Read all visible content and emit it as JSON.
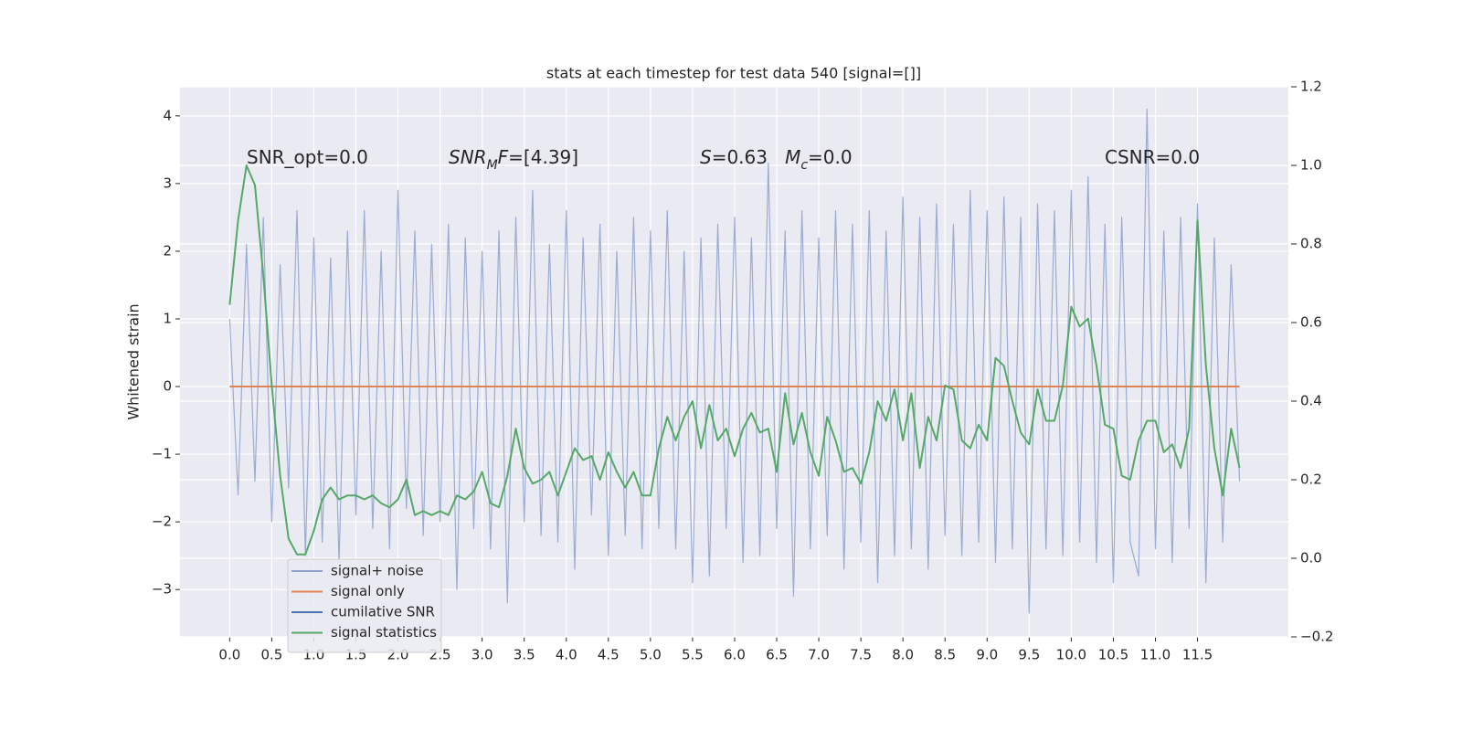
{
  "chart_data": {
    "type": "line",
    "title": "stats at each timestep for test data 540 [signal=[]]",
    "ylabel": "Whitened strain",
    "annotations": [
      [
        {
          "text": "SNR_opt=0.0"
        }
      ],
      [
        {
          "text": "SNR",
          "italic": true
        },
        {
          "text": "M",
          "italic": true,
          "sub": true
        },
        {
          "text": "F",
          "italic": true
        },
        {
          "text": "=[4.39]"
        }
      ],
      [
        {
          "text": "S",
          "italic": true
        },
        {
          "text": "=0.63   "
        },
        {
          "text": "M",
          "italic": true
        },
        {
          "text": "c",
          "italic": true,
          "sub": true
        },
        {
          "text": "=0.0"
        }
      ],
      [
        {
          "text": "CSNR=0.0"
        }
      ]
    ],
    "grid": true,
    "legend": "lower left",
    "xlim": [
      -0.59,
      12.58
    ],
    "ylim": [
      -3.7,
      4.43
    ],
    "y2lim": [
      -0.2,
      1.2
    ],
    "xticks": [
      {
        "value": 0,
        "label": "0.0"
      },
      0.5,
      {
        "value": 1,
        "label": "1.0"
      },
      1.5,
      {
        "value": 2,
        "label": "2.0"
      },
      2.5,
      {
        "value": 3,
        "label": "3.0"
      },
      3.5,
      {
        "value": 4,
        "label": "4.0"
      },
      4.5,
      {
        "value": 5,
        "label": "5.0"
      },
      5.5,
      {
        "value": 6,
        "label": "6.0"
      },
      6.5,
      {
        "value": 7,
        "label": "7.0"
      },
      7.5,
      {
        "value": 8,
        "label": "8.0"
      },
      8.5,
      {
        "value": 9,
        "label": "9.0"
      },
      9.5,
      {
        "value": 10,
        "label": "10.0"
      },
      10.5,
      {
        "value": 11,
        "label": "11.0"
      },
      11.5
    ],
    "yticks": [
      {
        "value": -3,
        "label": "−3"
      },
      {
        "value": -2,
        "label": "−2"
      },
      {
        "value": -1,
        "label": "−1"
      },
      0,
      1,
      2,
      3,
      4
    ],
    "y2ticks": [
      {
        "value": -0.2,
        "label": "−0.2"
      },
      {
        "value": 0,
        "label": "0.0"
      },
      0.2,
      0.4,
      0.6,
      0.8,
      {
        "value": 1,
        "label": "1.0"
      },
      1.2
    ],
    "x": [
      0.0,
      0.1,
      0.2,
      0.3,
      0.4,
      0.5,
      0.6,
      0.7,
      0.8,
      0.9,
      1.0,
      1.1,
      1.2,
      1.3,
      1.4,
      1.5,
      1.6,
      1.7,
      1.8,
      1.9,
      2.0,
      2.1,
      2.2,
      2.3,
      2.4,
      2.5,
      2.6,
      2.7,
      2.8,
      2.9,
      3.0,
      3.1,
      3.2,
      3.3,
      3.4,
      3.5,
      3.6,
      3.7,
      3.8,
      3.9,
      4.0,
      4.1,
      4.2,
      4.3,
      4.4,
      4.5,
      4.6,
      4.7,
      4.8,
      4.9,
      5.0,
      5.1,
      5.2,
      5.3,
      5.4,
      5.5,
      5.6,
      5.7,
      5.8,
      5.9,
      6.0,
      6.1,
      6.2,
      6.3,
      6.4,
      6.5,
      6.6,
      6.7,
      6.8,
      6.9,
      7.0,
      7.1,
      7.2,
      7.3,
      7.4,
      7.5,
      7.6,
      7.7,
      7.8,
      7.9,
      8.0,
      8.1,
      8.2,
      8.3,
      8.4,
      8.5,
      8.6,
      8.7,
      8.8,
      8.9,
      9.0,
      9.1,
      9.2,
      9.3,
      9.4,
      9.5,
      9.6,
      9.7,
      9.8,
      9.9,
      10.0,
      10.1,
      10.2,
      10.3,
      10.4,
      10.5,
      10.6,
      10.7,
      10.8,
      10.9,
      11.0,
      11.1,
      11.2,
      11.3,
      11.4,
      11.5,
      11.6,
      11.7,
      11.8,
      11.9,
      12.0
    ],
    "series": [
      {
        "name": "signal+ noise",
        "color": "#8da0cb",
        "values": [
          1.0,
          -1.6,
          2.1,
          -1.4,
          2.5,
          -2.0,
          1.8,
          -1.5,
          2.6,
          -2.5,
          2.2,
          -2.3,
          1.9,
          -2.6,
          2.3,
          -1.9,
          2.6,
          -2.1,
          2.0,
          -2.4,
          2.9,
          -1.8,
          2.3,
          -2.2,
          2.1,
          -2.0,
          2.4,
          -3.0,
          2.2,
          -2.1,
          2.0,
          -2.4,
          2.3,
          -3.2,
          2.5,
          -2.0,
          2.9,
          -2.2,
          2.1,
          -2.3,
          2.6,
          -2.7,
          2.2,
          -1.9,
          2.4,
          -2.5,
          2.0,
          -2.2,
          2.5,
          -2.4,
          2.3,
          -2.1,
          2.6,
          -2.4,
          2.0,
          -2.9,
          2.2,
          -2.8,
          2.4,
          -2.1,
          2.5,
          -2.6,
          2.2,
          -2.5,
          3.3,
          -2.1,
          2.3,
          -3.1,
          2.6,
          -2.4,
          2.2,
          -2.2,
          2.6,
          -2.7,
          2.4,
          -2.3,
          2.6,
          -2.9,
          2.3,
          -2.5,
          2.8,
          -2.4,
          2.5,
          -2.7,
          2.7,
          -2.2,
          2.4,
          -2.5,
          2.9,
          -2.3,
          2.6,
          -2.6,
          2.8,
          -2.4,
          2.5,
          -3.35,
          2.7,
          -2.4,
          2.6,
          -2.5,
          2.9,
          -2.3,
          3.1,
          -2.6,
          2.4,
          -2.9,
          2.5,
          -2.3,
          -2.8,
          4.1,
          -2.4,
          2.3,
          -2.6,
          2.5,
          -2.1,
          2.7,
          -2.9,
          2.2,
          -2.3,
          1.8,
          -1.4
        ]
      },
      {
        "name": "signal only",
        "color": "#dd8452",
        "values": [
          0,
          0,
          0,
          0,
          0,
          0,
          0,
          0,
          0,
          0,
          0,
          0,
          0,
          0,
          0,
          0,
          0,
          0,
          0,
          0,
          0,
          0,
          0,
          0,
          0,
          0,
          0,
          0,
          0,
          0,
          0,
          0,
          0,
          0,
          0,
          0,
          0,
          0,
          0,
          0,
          0,
          0,
          0,
          0,
          0,
          0,
          0,
          0,
          0,
          0,
          0,
          0,
          0,
          0,
          0,
          0,
          0,
          0,
          0,
          0,
          0,
          0,
          0,
          0,
          0,
          0,
          0,
          0,
          0,
          0,
          0,
          0,
          0,
          0,
          0,
          0,
          0,
          0,
          0,
          0,
          0,
          0,
          0,
          0,
          0,
          0,
          0,
          0,
          0,
          0,
          0,
          0,
          0,
          0,
          0,
          0,
          0,
          0,
          0,
          0,
          0,
          0,
          0,
          0,
          0,
          0,
          0,
          0,
          0,
          0,
          0,
          0,
          0,
          0,
          0,
          0,
          0,
          0,
          0,
          0,
          0
        ]
      },
      {
        "name": "cumilative SNR",
        "color": "#4c72b0",
        "values": [
          null,
          null,
          null,
          null,
          null,
          null,
          null,
          null,
          null,
          null,
          null,
          null,
          null,
          null,
          null,
          null,
          null,
          null,
          null,
          null,
          null,
          null,
          null,
          null,
          null,
          null,
          null,
          null,
          null,
          null,
          null,
          null,
          null,
          null,
          null,
          null,
          null,
          null,
          null,
          null,
          null,
          null,
          null,
          null,
          null,
          null,
          null,
          null,
          null,
          null,
          null,
          null,
          null,
          null,
          null,
          null,
          null,
          null,
          null,
          null,
          null,
          null,
          null,
          null,
          null,
          null,
          null,
          null,
          null,
          null,
          null,
          null,
          null,
          null,
          null,
          null,
          null,
          null,
          null,
          null,
          null,
          null,
          null,
          null,
          null,
          null,
          null,
          null,
          null,
          null,
          null,
          null,
          null,
          null,
          null,
          null,
          null,
          null,
          null,
          null,
          null,
          null,
          null,
          null,
          null,
          null,
          null,
          null,
          null,
          null,
          null,
          null,
          null,
          null,
          null,
          null,
          null,
          null,
          null,
          null,
          null
        ]
      },
      {
        "name": "signal statistics",
        "color": "#55a868",
        "axis": "y2",
        "values": [
          0.645,
          0.86,
          1.0,
          0.95,
          0.72,
          0.44,
          0.21,
          0.05,
          0.01,
          0.01,
          0.07,
          0.15,
          0.18,
          0.15,
          0.16,
          0.16,
          0.15,
          0.16,
          0.14,
          0.13,
          0.15,
          0.2,
          0.11,
          0.12,
          0.11,
          0.12,
          0.11,
          0.16,
          0.15,
          0.17,
          0.22,
          0.14,
          0.13,
          0.21,
          0.33,
          0.23,
          0.19,
          0.2,
          0.22,
          0.16,
          0.22,
          0.28,
          0.25,
          0.26,
          0.2,
          0.27,
          0.22,
          0.18,
          0.22,
          0.16,
          0.16,
          0.28,
          0.36,
          0.3,
          0.36,
          0.4,
          0.28,
          0.39,
          0.3,
          0.33,
          0.26,
          0.33,
          0.37,
          0.32,
          0.33,
          0.22,
          0.42,
          0.29,
          0.37,
          0.27,
          0.21,
          0.36,
          0.3,
          0.22,
          0.23,
          0.19,
          0.27,
          0.4,
          0.35,
          0.43,
          0.3,
          0.42,
          0.23,
          0.36,
          0.3,
          0.44,
          0.43,
          0.3,
          0.28,
          0.34,
          0.3,
          0.51,
          0.49,
          0.4,
          0.32,
          0.29,
          0.43,
          0.35,
          0.35,
          0.44,
          0.64,
          0.59,
          0.61,
          0.49,
          0.34,
          0.33,
          0.21,
          0.2,
          0.3,
          0.35,
          0.35,
          0.27,
          0.29,
          0.23,
          0.33,
          0.86,
          0.49,
          0.28,
          0.16,
          0.33,
          0.23
        ]
      }
    ]
  }
}
